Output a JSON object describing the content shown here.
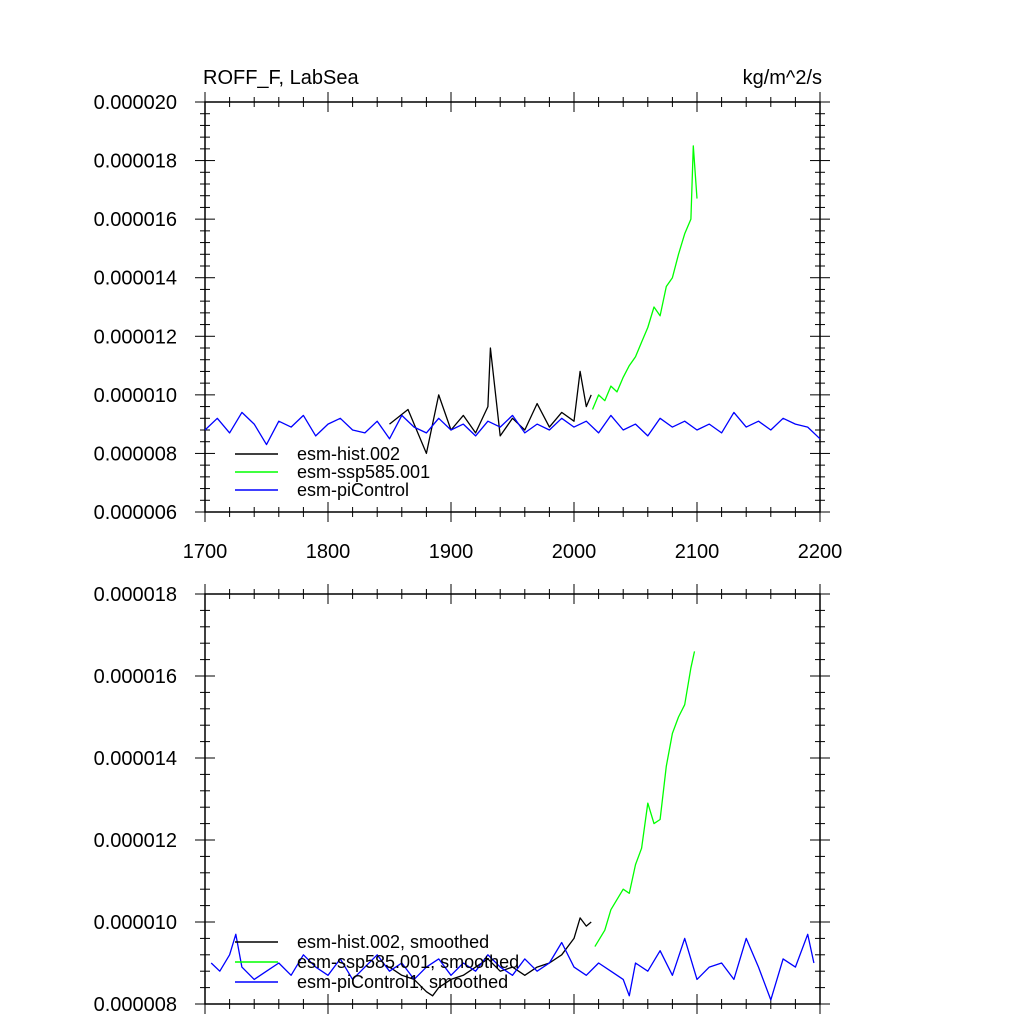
{
  "chart_data": [
    {
      "type": "line",
      "title": "ROFF_F, LabSea",
      "units": "kg/m^2/s",
      "xlim": [
        1700,
        2200
      ],
      "ylim": [
        6e-06,
        2e-05
      ],
      "x_ticks": [
        1700,
        1800,
        1900,
        2000,
        2100,
        2200
      ],
      "x_tick_labels": [
        "1700",
        "1800",
        "1900",
        "2000",
        "2100",
        "2200"
      ],
      "y_ticks": [
        6e-06,
        8e-06,
        1e-05,
        1.2e-05,
        1.4e-05,
        1.6e-05,
        1.8e-05,
        2e-05
      ],
      "y_tick_labels": [
        "0.000006",
        "0.000008",
        "0.000010",
        "0.000012",
        "0.000014",
        "0.000016",
        "0.000018",
        "0.000020"
      ],
      "legend_position": "bottom-left",
      "series": [
        {
          "name": "esm-hist.002",
          "color": "#000000",
          "x": [
            1850,
            1865,
            1880,
            1890,
            1900,
            1910,
            1920,
            1930,
            1932,
            1940,
            1950,
            1960,
            1970,
            1980,
            1990,
            2000,
            2005,
            2010,
            2014
          ],
          "y": [
            9e-06,
            9.5e-06,
            8e-06,
            1e-05,
            8.8e-06,
            9.3e-06,
            8.7e-06,
            9.6e-06,
            1.16e-05,
            8.6e-06,
            9.2e-06,
            8.8e-06,
            9.7e-06,
            8.9e-06,
            9.4e-06,
            9.1e-06,
            1.08e-05,
            9.6e-06,
            1e-05
          ]
        },
        {
          "name": "esm-ssp585.001",
          "color": "#00ff00",
          "x": [
            2015,
            2020,
            2025,
            2030,
            2035,
            2040,
            2045,
            2050,
            2055,
            2060,
            2065,
            2070,
            2075,
            2080,
            2085,
            2090,
            2095,
            2097,
            2100
          ],
          "y": [
            9.5e-06,
            1e-05,
            9.8e-06,
            1.03e-05,
            1.01e-05,
            1.06e-05,
            1.1e-05,
            1.13e-05,
            1.18e-05,
            1.23e-05,
            1.3e-05,
            1.27e-05,
            1.37e-05,
            1.4e-05,
            1.48e-05,
            1.55e-05,
            1.6e-05,
            1.85e-05,
            1.67e-05
          ]
        },
        {
          "name": "esm-piControl",
          "color": "#0000ff",
          "x": [
            1700,
            1710,
            1720,
            1730,
            1740,
            1750,
            1760,
            1770,
            1780,
            1790,
            1800,
            1810,
            1820,
            1830,
            1840,
            1850,
            1860,
            1870,
            1880,
            1890,
            1900,
            1910,
            1920,
            1930,
            1940,
            1950,
            1960,
            1970,
            1980,
            1990,
            2000,
            2010,
            2020,
            2030,
            2040,
            2050,
            2060,
            2070,
            2080,
            2090,
            2100,
            2110,
            2120,
            2130,
            2140,
            2150,
            2160,
            2170,
            2180,
            2190,
            2200
          ],
          "y": [
            8.8e-06,
            9.2e-06,
            8.7e-06,
            9.4e-06,
            9e-06,
            8.3e-06,
            9.1e-06,
            8.9e-06,
            9.3e-06,
            8.6e-06,
            9e-06,
            9.2e-06,
            8.8e-06,
            8.7e-06,
            9.1e-06,
            8.5e-06,
            9.3e-06,
            8.9e-06,
            8.7e-06,
            9.2e-06,
            8.8e-06,
            9e-06,
            8.6e-06,
            9.1e-06,
            8.9e-06,
            9.3e-06,
            8.7e-06,
            9e-06,
            8.8e-06,
            9.2e-06,
            8.9e-06,
            9.1e-06,
            8.7e-06,
            9.3e-06,
            8.8e-06,
            9e-06,
            8.6e-06,
            9.2e-06,
            8.9e-06,
            9.1e-06,
            8.8e-06,
            9e-06,
            8.7e-06,
            9.4e-06,
            8.9e-06,
            9.1e-06,
            8.8e-06,
            9.2e-06,
            9e-06,
            8.9e-06,
            8.5e-06
          ]
        }
      ]
    },
    {
      "type": "line",
      "title": "",
      "units": "",
      "xlim": [
        1700,
        2200
      ],
      "ylim": [
        8e-06,
        1.8e-05
      ],
      "x_ticks": [
        1700,
        1800,
        1900,
        2000,
        2100,
        2200
      ],
      "x_tick_labels": [],
      "y_ticks": [
        8e-06,
        1e-05,
        1.2e-05,
        1.4e-05,
        1.6e-05,
        1.8e-05
      ],
      "y_tick_labels": [
        "0.000008",
        "0.000010",
        "0.000012",
        "0.000014",
        "0.000016",
        "0.000018"
      ],
      "legend_position": "bottom-left",
      "series": [
        {
          "name": "esm-hist.002, smoothed",
          "color": "#000000",
          "x": [
            1850,
            1860,
            1870,
            1880,
            1885,
            1890,
            1900,
            1910,
            1920,
            1930,
            1940,
            1950,
            1960,
            1970,
            1980,
            1990,
            2000,
            2005,
            2010,
            2014
          ],
          "y": [
            8.9e-06,
            8.7e-06,
            8.6e-06,
            8.3e-06,
            8.2e-06,
            8.4e-06,
            8.6e-06,
            8.7e-06,
            8.9e-06,
            9.1e-06,
            8.8e-06,
            8.9e-06,
            8.7e-06,
            8.9e-06,
            9e-06,
            9.2e-06,
            9.6e-06,
            1.01e-05,
            9.9e-06,
            1e-05
          ]
        },
        {
          "name": "esm-ssp585.001, smoothed",
          "color": "#00ff00",
          "x": [
            2017,
            2025,
            2030,
            2040,
            2045,
            2050,
            2055,
            2060,
            2065,
            2070,
            2075,
            2080,
            2085,
            2090,
            2095,
            2098
          ],
          "y": [
            9.4e-06,
            9.8e-06,
            1.03e-05,
            1.08e-05,
            1.07e-05,
            1.14e-05,
            1.18e-05,
            1.29e-05,
            1.24e-05,
            1.25e-05,
            1.38e-05,
            1.46e-05,
            1.5e-05,
            1.53e-05,
            1.62e-05,
            1.66e-05
          ]
        },
        {
          "name": "esm-piControl1, smoothed",
          "color": "#0000ff",
          "x": [
            1705,
            1712,
            1720,
            1725,
            1730,
            1740,
            1750,
            1760,
            1770,
            1780,
            1790,
            1800,
            1810,
            1820,
            1830,
            1840,
            1850,
            1860,
            1870,
            1880,
            1890,
            1900,
            1910,
            1920,
            1930,
            1940,
            1950,
            1960,
            1970,
            1980,
            1990,
            2000,
            2010,
            2020,
            2030,
            2040,
            2045,
            2050,
            2060,
            2070,
            2080,
            2090,
            2100,
            2110,
            2120,
            2130,
            2140,
            2150,
            2160,
            2170,
            2180,
            2190,
            2195
          ],
          "y": [
            9e-06,
            8.8e-06,
            9.2e-06,
            9.7e-06,
            8.9e-06,
            8.6e-06,
            8.8e-06,
            9e-06,
            8.7e-06,
            9.2e-06,
            8.9e-06,
            8.7e-06,
            9.1e-06,
            8.6e-06,
            8.9e-06,
            9.2e-06,
            8.8e-06,
            9e-06,
            8.6e-06,
            8.9e-06,
            9.1e-06,
            8.7e-06,
            9e-06,
            8.8e-06,
            9.2e-06,
            8.9e-06,
            8.7e-06,
            9.1e-06,
            8.8e-06,
            9e-06,
            9.5e-06,
            8.9e-06,
            8.7e-06,
            9e-06,
            8.8e-06,
            8.6e-06,
            8.2e-06,
            9e-06,
            8.8e-06,
            9.3e-06,
            8.7e-06,
            9.6e-06,
            8.6e-06,
            8.9e-06,
            9e-06,
            8.6e-06,
            9.6e-06,
            8.9e-06,
            8.1e-06,
            9.1e-06,
            8.9e-06,
            9.7e-06,
            9e-06
          ]
        }
      ]
    }
  ]
}
